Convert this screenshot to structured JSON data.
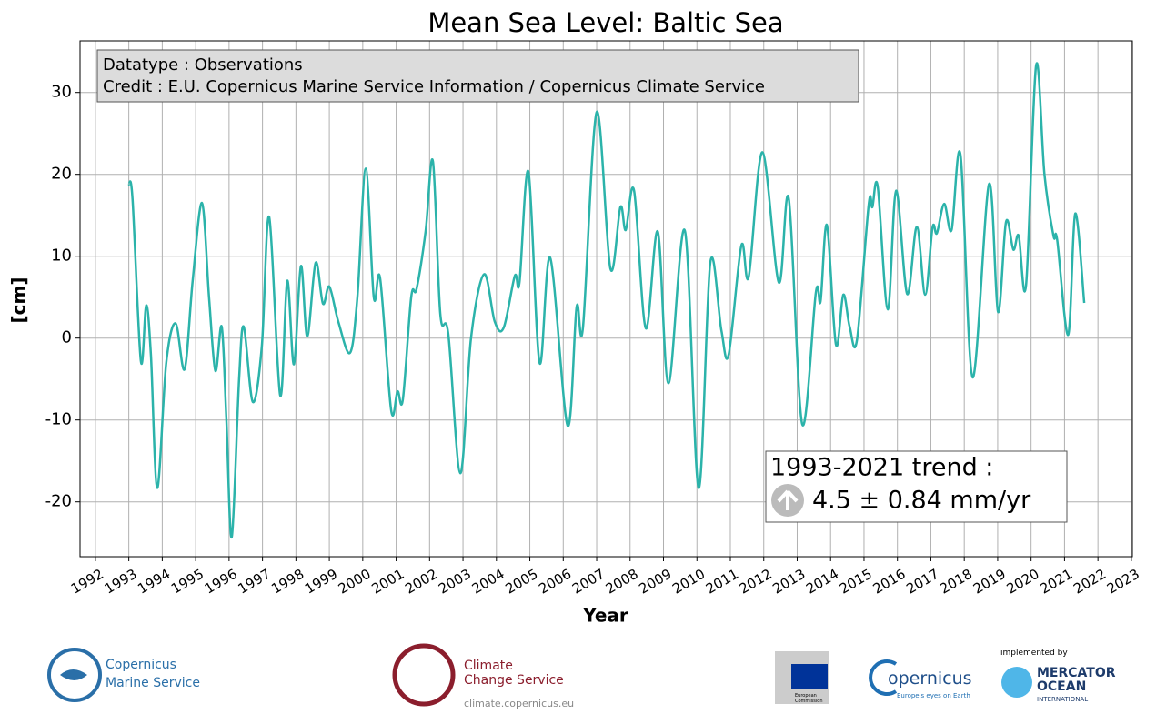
{
  "chart_data": {
    "type": "line",
    "title": "Mean Sea Level: Baltic Sea",
    "x_label": "Year",
    "y_label": "[cm]",
    "info_box": [
      "Datatype : Observations",
      "Credit : E.U. Copernicus Marine Service Information / Copernicus Climate Service"
    ],
    "trend_box": {
      "title": "1993-2021 trend :",
      "value": "4.5 ± 0.84 mm/yr"
    },
    "xlim": [
      1991.54,
      2023.03
    ],
    "ylim": [
      -26.7,
      36.3
    ],
    "xticks": [
      1992,
      1993,
      1994,
      1995,
      1996,
      1997,
      1998,
      1999,
      2000,
      2001,
      2002,
      2003,
      2004,
      2005,
      2006,
      2007,
      2008,
      2009,
      2010,
      2011,
      2012,
      2013,
      2014,
      2015,
      2016,
      2017,
      2018,
      2019,
      2020,
      2021,
      2022,
      2023
    ],
    "yticks": [
      -20,
      -10,
      0,
      10,
      20,
      30
    ],
    "grid": true,
    "x": [
      1993.0,
      1993.11,
      1993.36,
      1993.52,
      1993.66,
      1993.85,
      1994.12,
      1994.4,
      1994.67,
      1994.91,
      1995.19,
      1995.4,
      1995.59,
      1995.78,
      1995.92,
      1996.08,
      1996.3,
      1996.44,
      1996.71,
      1996.98,
      1997.2,
      1997.53,
      1997.74,
      1997.94,
      1998.15,
      1998.34,
      1998.59,
      1998.81,
      1999.0,
      1999.27,
      1999.62,
      1999.84,
      2000.09,
      2000.33,
      2000.52,
      2000.85,
      2001.04,
      2001.2,
      2001.45,
      2001.61,
      2001.88,
      2002.1,
      2002.32,
      2002.56,
      2002.92,
      2003.24,
      2003.63,
      2003.95,
      2004.22,
      2004.55,
      2004.69,
      2004.96,
      2005.29,
      2005.61,
      2006.13,
      2006.4,
      2006.59,
      2007.0,
      2007.41,
      2007.71,
      2007.87,
      2008.12,
      2008.47,
      2008.83,
      2009.15,
      2009.64,
      2010.05,
      2010.4,
      2010.73,
      2010.95,
      2011.33,
      2011.55,
      2011.96,
      2012.45,
      2012.75,
      2013.15,
      2013.56,
      2013.7,
      2013.89,
      2014.16,
      2014.38,
      2014.57,
      2014.79,
      2015.14,
      2015.25,
      2015.41,
      2015.71,
      2015.96,
      2016.29,
      2016.58,
      2016.83,
      2017.05,
      2017.18,
      2017.4,
      2017.62,
      2017.89,
      2018.25,
      2018.74,
      2019.01,
      2019.25,
      2019.47,
      2019.63,
      2019.85,
      2020.15,
      2020.4,
      2020.67,
      2020.78,
      2021.11,
      2021.32,
      2021.59
    ],
    "series": [
      {
        "name": "Mean Sea Level",
        "color": "#2bb3aa",
        "values": [
          18.8,
          17,
          -2.8,
          4.0,
          -2,
          -18.3,
          -3,
          1.8,
          -3.8,
          7,
          16.5,
          5,
          -4,
          1.4,
          -10,
          -24.3,
          -5,
          1.4,
          -7.8,
          -1,
          14.8,
          -7,
          7,
          -3.2,
          8.8,
          0.2,
          9.2,
          4.2,
          6.3,
          2,
          -1.8,
          5,
          20.7,
          5,
          7.3,
          -8.8,
          -6.5,
          -7.5,
          5,
          6,
          13,
          21.6,
          3,
          0.5,
          -16.5,
          0,
          7.8,
          2,
          1.3,
          7.6,
          6.8,
          20.3,
          -3,
          9.8,
          -10.7,
          3.8,
          1.3,
          27.6,
          8.5,
          16,
          13.2,
          18,
          1.2,
          13,
          -5.5,
          13.1,
          -18.3,
          9.2,
          1,
          -2,
          11.3,
          7.5,
          22.7,
          6.8,
          17,
          -10.5,
          5.6,
          4.5,
          13.8,
          -0.8,
          5.3,
          1.4,
          -0.2,
          16.3,
          16,
          18.5,
          3.5,
          18,
          5.4,
          13.6,
          5.3,
          13.5,
          12.8,
          16.4,
          13.2,
          22.3,
          -4.8,
          18.8,
          3.2,
          14.2,
          10.8,
          12.5,
          6.5,
          33.3,
          20,
          12.5,
          12,
          0.4,
          15.2,
          4.3
        ]
      }
    ]
  },
  "footer": {
    "marine": [
      "Copernicus",
      "Marine Service"
    ],
    "climate": [
      "Climate",
      "Change Service",
      "climate.copernicus.eu"
    ],
    "eu": [
      "European",
      "Commission"
    ],
    "copernicus": [
      "opernicus",
      "Europe's eyes on Earth"
    ],
    "mercator": [
      "implemented by",
      "MERCATOR",
      "OCEAN",
      "INTERNATIONAL"
    ]
  }
}
